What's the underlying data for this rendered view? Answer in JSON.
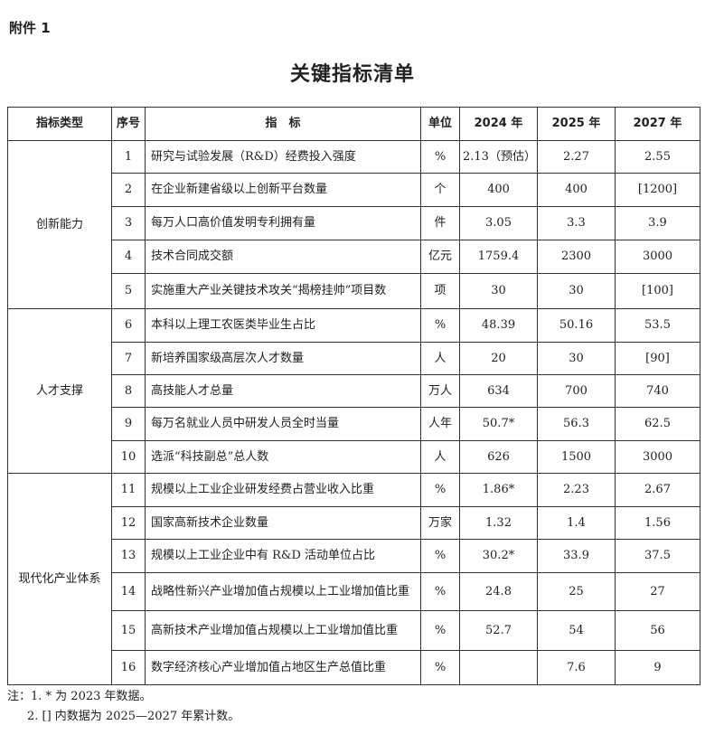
{
  "attachment_label": "附件 1",
  "title": "关键指标清单",
  "table": {
    "headers": [
      "指标类型",
      "序号",
      "指　标",
      "单位",
      "2024 年",
      "2025 年",
      "2027 年"
    ],
    "groups": [
      {
        "category": "创新能力",
        "rows": [
          {
            "no": "1",
            "name": "研究与试验发展（R&D）经费投入强度",
            "unit": "%",
            "y2024": "2.13（预估）",
            "y2025": "2.27",
            "y2027": "2.55"
          },
          {
            "no": "2",
            "name": "在企业新建省级以上创新平台数量",
            "unit": "个",
            "y2024": "400",
            "y2025": "400",
            "y2027": "[1200]"
          },
          {
            "no": "3",
            "name": "每万人口高价值发明专利拥有量",
            "unit": "件",
            "y2024": "3.05",
            "y2025": "3.3",
            "y2027": "3.9"
          },
          {
            "no": "4",
            "name": "技术合同成交额",
            "unit": "亿元",
            "y2024": "1759.4",
            "y2025": "2300",
            "y2027": "3000"
          },
          {
            "no": "5",
            "name": "实施重大产业关键技术攻关“揭榜挂帅”项目数",
            "unit": "项",
            "y2024": "30",
            "y2025": "30",
            "y2027": "[100]"
          }
        ]
      },
      {
        "category": "人才支撑",
        "rows": [
          {
            "no": "6",
            "name": "本科以上理工农医类毕业生占比",
            "unit": "%",
            "y2024": "48.39",
            "y2025": "50.16",
            "y2027": "53.5"
          },
          {
            "no": "7",
            "name": "新培养国家级高层次人才数量",
            "unit": "人",
            "y2024": "20",
            "y2025": "30",
            "y2027": "[90]"
          },
          {
            "no": "8",
            "name": "高技能人才总量",
            "unit": "万人",
            "y2024": "634",
            "y2025": "700",
            "y2027": "740"
          },
          {
            "no": "9",
            "name": "每万名就业人员中研发人员全时当量",
            "unit": "人年",
            "y2024": "50.7*",
            "y2025": "56.3",
            "y2027": "62.5"
          },
          {
            "no": "10",
            "name": "选派“科技副总”总人数",
            "unit": "人",
            "y2024": "626",
            "y2025": "1500",
            "y2027": "3000"
          }
        ]
      },
      {
        "category": "现代化产业体系",
        "rows": [
          {
            "no": "11",
            "name": "规模以上工业企业研发经费占营业收入比重",
            "unit": "%",
            "y2024": "1.86*",
            "y2025": "2.23",
            "y2027": "2.67"
          },
          {
            "no": "12",
            "name": "国家高新技术企业数量",
            "unit": "万家",
            "y2024": "1.32",
            "y2025": "1.4",
            "y2027": "1.56"
          },
          {
            "no": "13",
            "name": "规模以上工业企业中有 R&D 活动单位占比",
            "unit": "%",
            "y2024": "30.2*",
            "y2025": "33.9",
            "y2027": "37.5"
          },
          {
            "no": "14",
            "name": "战略性新兴产业增加值占规模以上工业增加值比重",
            "unit": "%",
            "y2024": "24.8",
            "y2025": "25",
            "y2027": "27"
          },
          {
            "no": "15",
            "name": "高新技术产业增加值占规模以上工业增加值比重",
            "unit": "%",
            "y2024": "52.7",
            "y2025": "54",
            "y2027": "56"
          },
          {
            "no": "16",
            "name": "数字经济核心产业增加值占地区生产总值比重",
            "unit": "%",
            "y2024": "",
            "y2025": "7.6",
            "y2027": "9"
          }
        ]
      }
    ]
  },
  "notes": [
    "注：1. * 为 2023 年数据。",
    "2. [] 内数据为 2025—2027 年累计数。"
  ]
}
